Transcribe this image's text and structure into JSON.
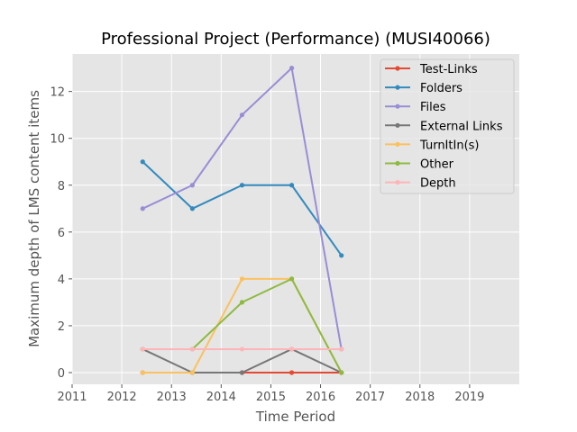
{
  "chart_data": {
    "type": "line",
    "title": "Professional Project (Performance) (MUSI40066)",
    "xlabel": "Time Period",
    "ylabel": "Maximum depth of LMS content items",
    "xlim": [
      2011,
      2020
    ],
    "ylim": [
      -0.5,
      13.6
    ],
    "xticks": [
      "2011",
      "2012",
      "2013",
      "2014",
      "2015",
      "2016",
      "2017",
      "2018",
      "2019"
    ],
    "yticks": [
      "0",
      "2",
      "4",
      "6",
      "8",
      "10",
      "12"
    ],
    "grid": true,
    "legend_position": "top-right",
    "x": [
      2012.42,
      2013.42,
      2014.42,
      2015.42,
      2016.42
    ],
    "series": [
      {
        "name": "Test-Links",
        "color": "#E24A33",
        "values": [
          0,
          0,
          0,
          0,
          0
        ]
      },
      {
        "name": "Folders",
        "color": "#348ABD",
        "values": [
          9,
          7,
          8,
          8,
          5
        ]
      },
      {
        "name": "Files",
        "color": "#988ED5",
        "values": [
          7,
          8,
          11,
          13,
          1
        ]
      },
      {
        "name": "External Links",
        "color": "#777777",
        "values": [
          1,
          0,
          0,
          1,
          0
        ]
      },
      {
        "name": "TurnItIn(s)",
        "color": "#FBC15E",
        "values": [
          0,
          0,
          4,
          4,
          0
        ]
      },
      {
        "name": "Other",
        "color": "#8EBA42",
        "values": [
          1,
          1,
          3,
          4,
          0
        ]
      },
      {
        "name": "Depth",
        "color": "#FFB5B8",
        "values": [
          1,
          1,
          1,
          1,
          1
        ]
      }
    ]
  }
}
